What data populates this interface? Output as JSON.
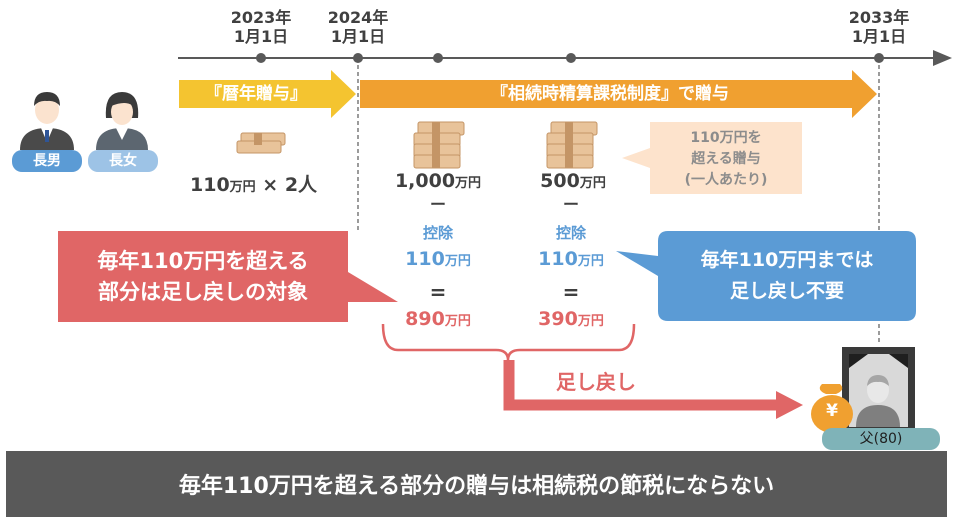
{
  "timeline": {
    "dates": [
      {
        "year": "2023年",
        "day": "1月1日"
      },
      {
        "year": "2024年",
        "day": "1月1日"
      },
      {
        "year": "2033年",
        "day": "1月1日"
      }
    ]
  },
  "arrows": {
    "calendar": "『暦年贈与』",
    "settlement": "『相続時精算課税制度』で贈与"
  },
  "people": {
    "son": "長男",
    "daughter": "長女",
    "father": "父(80)"
  },
  "gifts": {
    "annual": {
      "amount": "110",
      "unit": "万円",
      "suffix": " × 2人"
    },
    "gift1": {
      "amount": "1,000",
      "unit": "万円"
    },
    "gift2": {
      "amount": "500",
      "unit": "万円"
    }
  },
  "note": {
    "line1": "110万円を",
    "line2": "超える贈与",
    "line3": "(一人あたり)"
  },
  "deduction": {
    "label": "控除",
    "col1": {
      "deduct": "110",
      "unit": "万円",
      "result": "890"
    },
    "col2": {
      "deduct": "110",
      "unit": "万円",
      "result": "390"
    }
  },
  "symbols": {
    "minus": "ー",
    "equals": "="
  },
  "callouts": {
    "left_line1": "毎年110万円を超える",
    "left_line2": "部分は足し戻しの対象",
    "right_line1": "毎年110万円までは",
    "right_line2": "足し戻し不要"
  },
  "addback": "足し戻し",
  "yen": "¥",
  "banner": "毎年110万円を超える部分の贈与は相続税の節税にならない",
  "colors": {
    "timeline": "#595959",
    "calendar_arrow": "#f4c430",
    "settlement_arrow": "#f0a030",
    "red": "#e06666",
    "blue": "#5b9bd5",
    "banner": "#595959"
  }
}
